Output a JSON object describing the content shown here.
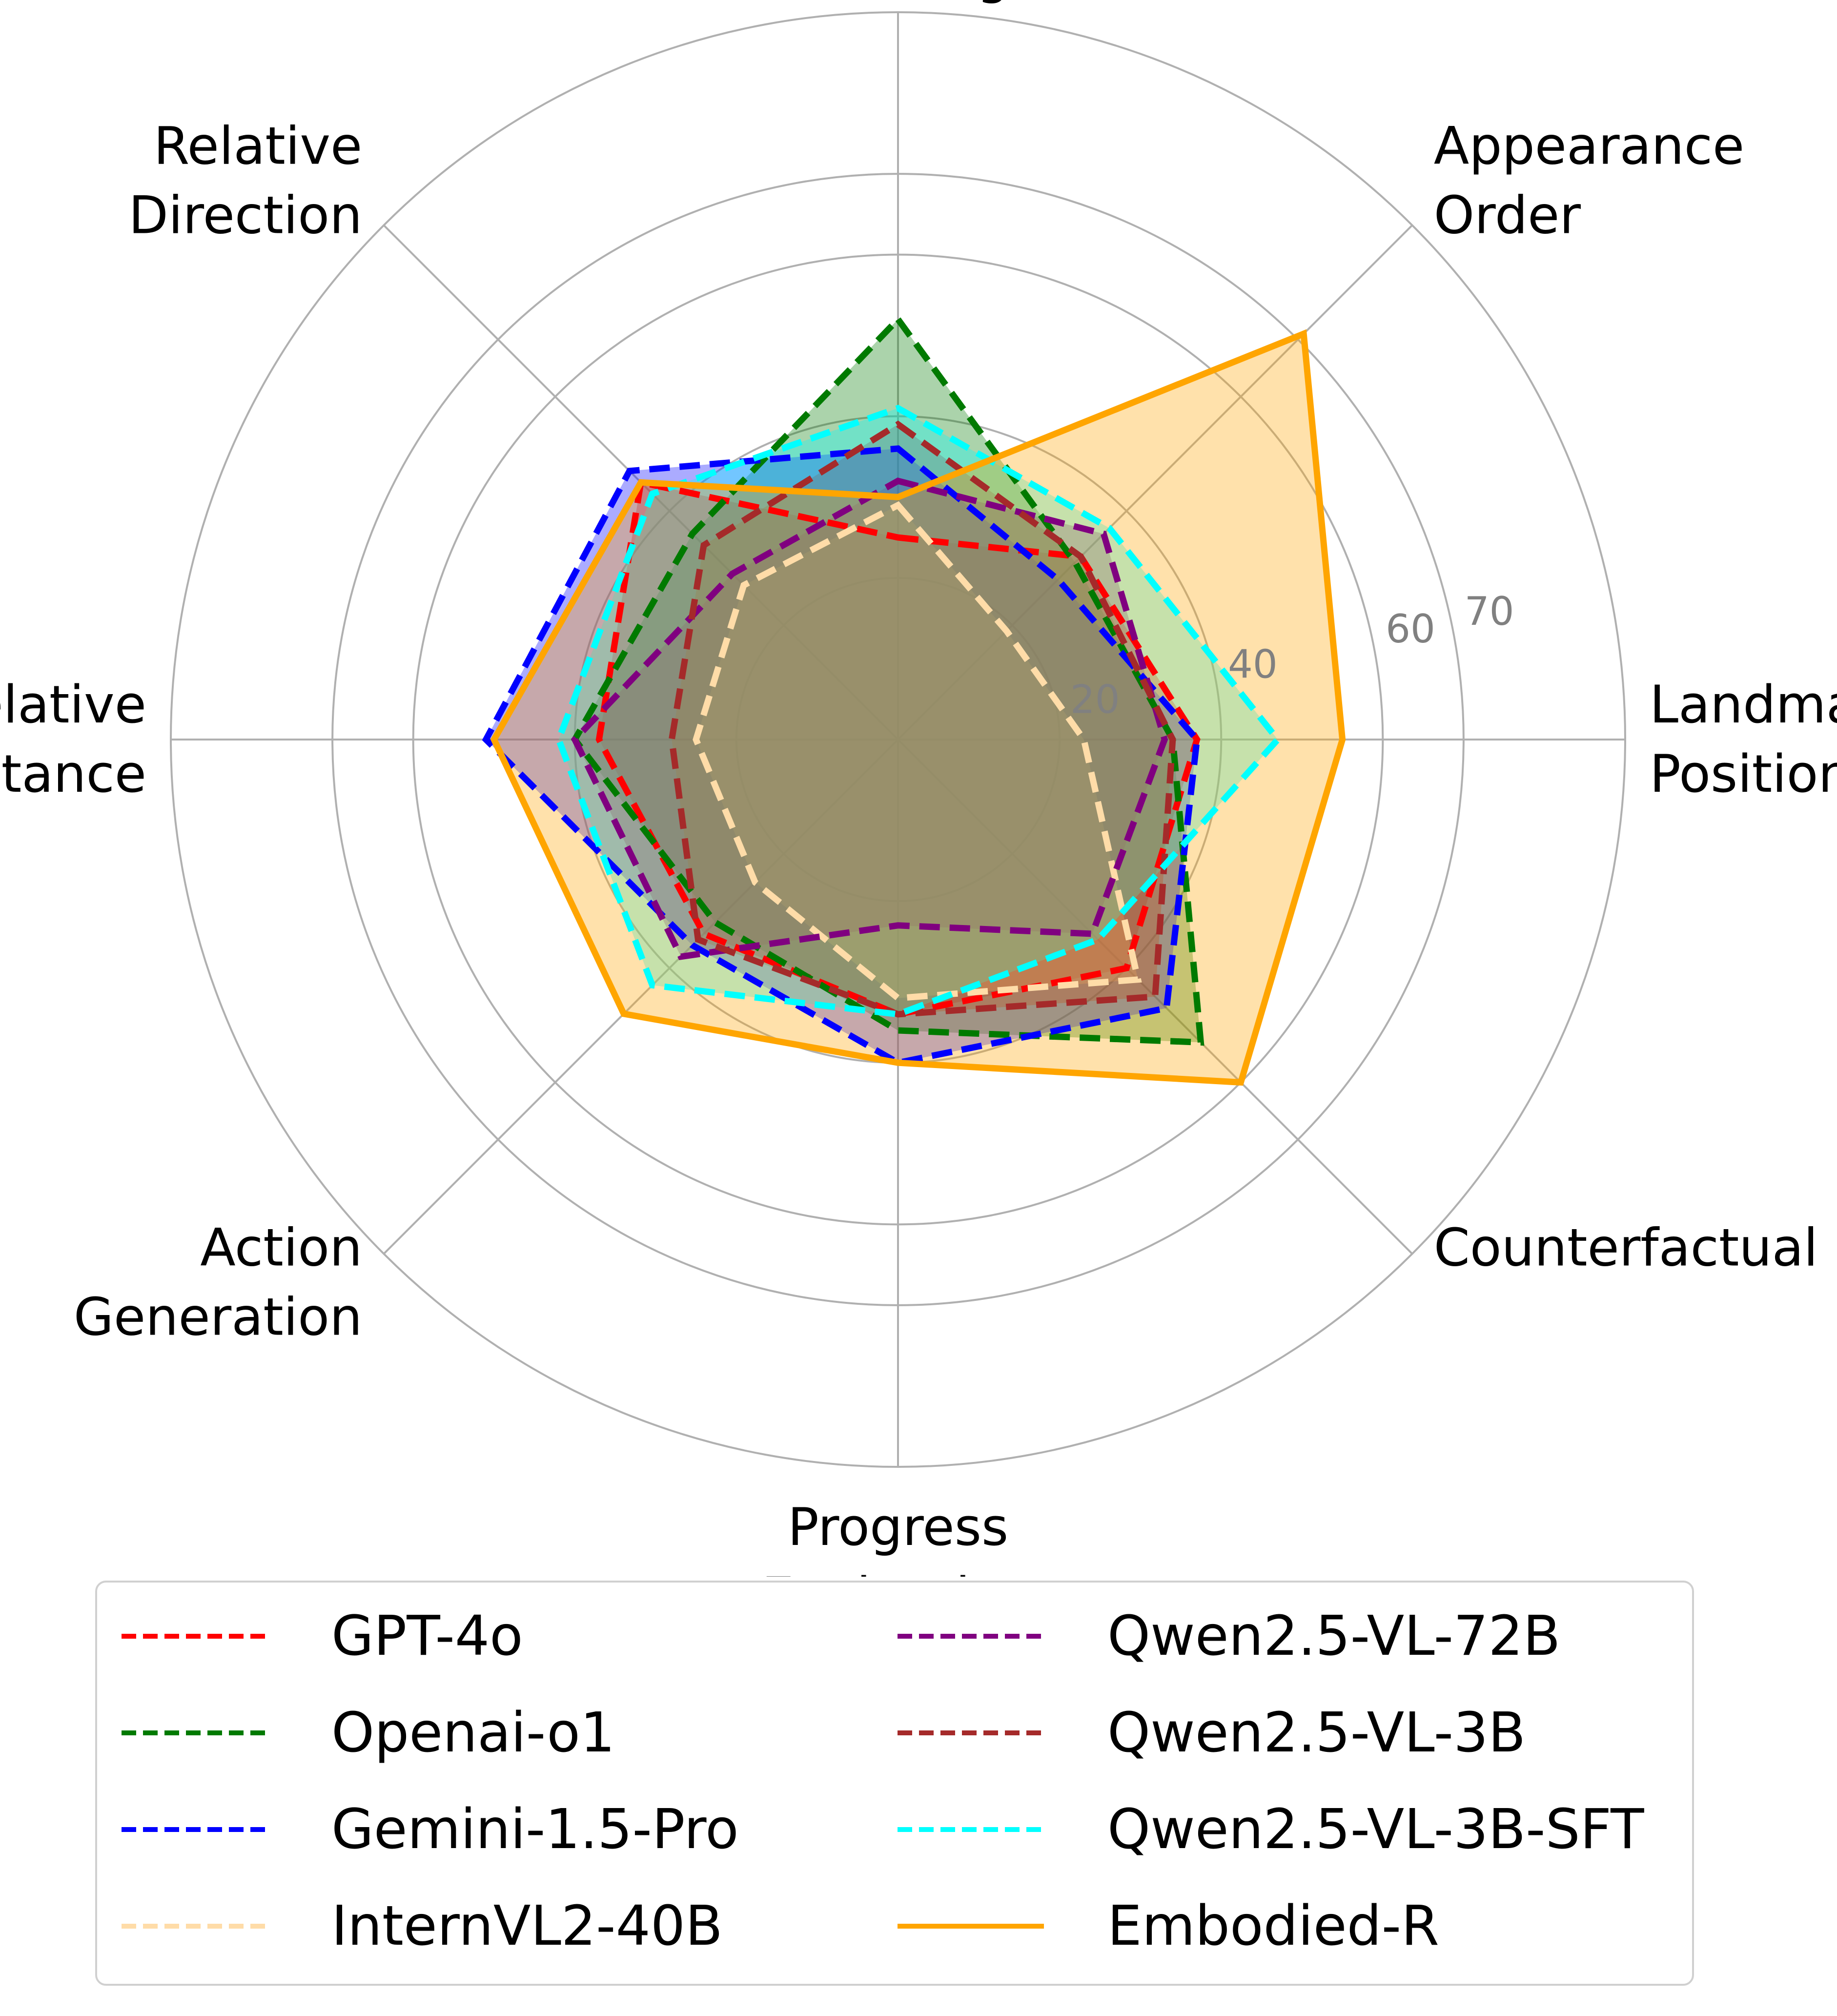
{
  "chart_data": {
    "type": "radar",
    "categories": [
      "Route\nPlanning",
      "Appearance\nOrder",
      "Landmark\nPosition",
      "Counterfactual",
      "Progress\nEvaluation",
      "Action\nGeneration",
      "Relative\nDistance",
      "Relative\nDirection"
    ],
    "radial_ticks": [
      "20",
      "40",
      "60",
      "70"
    ],
    "radial_tick_values": [
      20,
      40,
      60,
      70
    ],
    "rmax": 90,
    "grid": true,
    "legend_position": "bottom",
    "series": [
      {
        "name": "GPT-4o",
        "color": "#ff0000",
        "style": "dashed",
        "values": [
          25,
          32,
          37,
          40,
          34,
          34,
          37,
          45
        ]
      },
      {
        "name": "Openai-o1",
        "color": "#007a00",
        "style": "dashed",
        "values": [
          52,
          31,
          34,
          53,
          36,
          32,
          40,
          36
        ]
      },
      {
        "name": "Gemini-1.5-Pro",
        "color": "#0000ff",
        "style": "dashed",
        "values": [
          36,
          28,
          37,
          47,
          40,
          36,
          51,
          47
        ]
      },
      {
        "name": "InternVL2-40B",
        "color": "#ffdca8",
        "style": "dashed",
        "values": [
          29,
          19,
          23,
          42,
          32,
          25,
          25,
          27
        ]
      },
      {
        "name": "Qwen2.5-VL-72B",
        "color": "#800080",
        "style": "dashed",
        "values": [
          32,
          36,
          33,
          34,
          23,
          38,
          40,
          29
        ]
      },
      {
        "name": "Qwen2.5-VL-3B",
        "color": "#a52a2a",
        "style": "dashed",
        "values": [
          39,
          32,
          34,
          45,
          34,
          35,
          28,
          34
        ]
      },
      {
        "name": "Qwen2.5-VL-3B-SFT",
        "color": "#00ffff",
        "style": "dashed",
        "values": [
          41,
          37,
          47,
          35,
          34,
          43,
          42,
          43
        ]
      },
      {
        "name": "Embodied-R",
        "color": "#ffa500",
        "style": "solid",
        "values": [
          30,
          71,
          55,
          60,
          40,
          48,
          50,
          45
        ]
      }
    ]
  }
}
